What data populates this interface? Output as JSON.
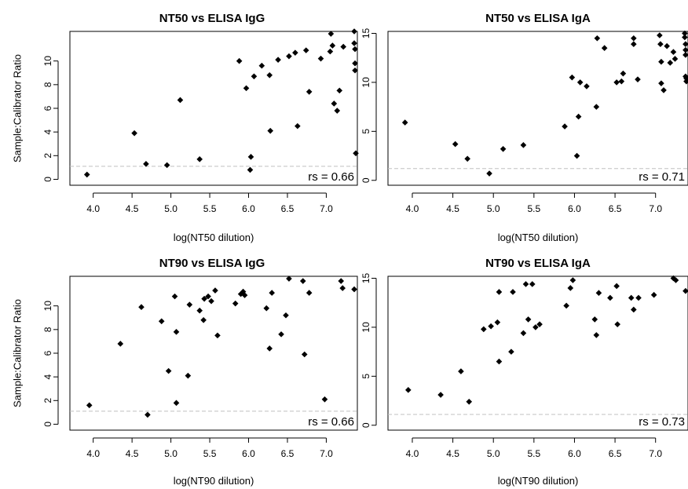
{
  "chart_data": [
    {
      "type": "scatter",
      "title": "NT50 vs ELISA IgG",
      "xlabel": "log(NT50 dilution)",
      "ylabel": "Sample:Calibrator Ratio",
      "xlim": [
        3.7,
        7.4
      ],
      "ylim": [
        -0.5,
        12.5
      ],
      "xticks": [
        "4.0",
        "4.5",
        "5.0",
        "5.5",
        "6.0",
        "6.5",
        "7.0"
      ],
      "xtick_values": [
        4.0,
        4.5,
        5.0,
        5.5,
        6.0,
        6.5,
        7.0
      ],
      "yticks": [
        "0",
        "2",
        "4",
        "6",
        "8",
        "10"
      ],
      "ytick_values": [
        0,
        2,
        4,
        6,
        8,
        10
      ],
      "ref_line": 1.1,
      "annotation": "rs = 0.66",
      "points": [
        [
          3.92,
          0.4
        ],
        [
          4.53,
          3.9
        ],
        [
          4.68,
          1.3
        ],
        [
          4.95,
          1.2
        ],
        [
          5.12,
          6.7
        ],
        [
          5.37,
          1.7
        ],
        [
          5.88,
          10.0
        ],
        [
          5.97,
          7.7
        ],
        [
          6.02,
          0.8
        ],
        [
          6.03,
          1.9
        ],
        [
          6.07,
          8.7
        ],
        [
          6.17,
          9.6
        ],
        [
          6.27,
          8.8
        ],
        [
          6.28,
          4.1
        ],
        [
          6.38,
          10.1
        ],
        [
          6.52,
          10.4
        ],
        [
          6.6,
          10.7
        ],
        [
          6.63,
          4.5
        ],
        [
          6.74,
          10.9
        ],
        [
          6.78,
          7.4
        ],
        [
          6.93,
          10.2
        ],
        [
          7.05,
          10.8
        ],
        [
          7.06,
          12.3
        ],
        [
          7.08,
          11.3
        ],
        [
          7.1,
          6.4
        ],
        [
          7.14,
          5.8
        ],
        [
          7.17,
          7.5
        ],
        [
          7.22,
          11.2
        ],
        [
          7.36,
          12.5
        ],
        [
          7.36,
          11.5
        ],
        [
          7.37,
          11.0
        ],
        [
          7.37,
          9.8
        ],
        [
          7.37,
          9.2
        ],
        [
          7.38,
          2.2
        ]
      ]
    },
    {
      "type": "scatter",
      "title": "NT50 vs ELISA IgA",
      "xlabel": "log(NT50 dilution)",
      "ylabel": "",
      "xlim": [
        3.7,
        7.4
      ],
      "ylim": [
        -0.5,
        15.2
      ],
      "xticks": [
        "4.0",
        "4.5",
        "5.0",
        "5.5",
        "6.0",
        "6.5",
        "7.0"
      ],
      "xtick_values": [
        4.0,
        4.5,
        5.0,
        5.5,
        6.0,
        6.5,
        7.0
      ],
      "yticks": [
        "0",
        "5",
        "10",
        "15"
      ],
      "ytick_values": [
        0,
        5,
        10,
        15
      ],
      "ref_line": 1.2,
      "annotation": "rs = 0.71",
      "points": [
        [
          3.91,
          5.9
        ],
        [
          4.53,
          3.7
        ],
        [
          4.68,
          2.2
        ],
        [
          4.95,
          0.7
        ],
        [
          5.12,
          3.2
        ],
        [
          5.37,
          3.6
        ],
        [
          5.88,
          5.5
        ],
        [
          5.97,
          10.5
        ],
        [
          6.03,
          2.5
        ],
        [
          6.05,
          6.5
        ],
        [
          6.07,
          10.0
        ],
        [
          6.15,
          9.6
        ],
        [
          6.27,
          7.5
        ],
        [
          6.28,
          14.5
        ],
        [
          6.37,
          13.5
        ],
        [
          6.52,
          10.0
        ],
        [
          6.58,
          10.1
        ],
        [
          6.6,
          10.9
        ],
        [
          6.73,
          14.5
        ],
        [
          6.73,
          13.9
        ],
        [
          6.78,
          10.3
        ],
        [
          7.05,
          14.8
        ],
        [
          7.06,
          13.9
        ],
        [
          7.07,
          12.1
        ],
        [
          7.07,
          9.9
        ],
        [
          7.1,
          9.2
        ],
        [
          7.14,
          13.7
        ],
        [
          7.18,
          12.0
        ],
        [
          7.22,
          13.1
        ],
        [
          7.24,
          12.4
        ],
        [
          7.36,
          15.0
        ],
        [
          7.36,
          14.6
        ],
        [
          7.37,
          13.9
        ],
        [
          7.37,
          13.3
        ],
        [
          7.37,
          12.8
        ],
        [
          7.37,
          10.6
        ],
        [
          7.38,
          10.1
        ],
        [
          7.38,
          10.4
        ]
      ]
    },
    {
      "type": "scatter",
      "title": "NT90 vs ELISA IgG",
      "xlabel": "log(NT90 dilution)",
      "ylabel": "Sample:Calibrator Ratio",
      "xlim": [
        3.7,
        7.4
      ],
      "ylim": [
        -0.5,
        12.5
      ],
      "xticks": [
        "4.0",
        "4.5",
        "5.0",
        "5.5",
        "6.0",
        "6.5",
        "7.0"
      ],
      "xtick_values": [
        4.0,
        4.5,
        5.0,
        5.5,
        6.0,
        6.5,
        7.0
      ],
      "yticks": [
        "0",
        "2",
        "4",
        "6",
        "8",
        "10"
      ],
      "ytick_values": [
        0,
        2,
        4,
        6,
        8,
        10
      ],
      "ref_line": 1.1,
      "annotation": "rs = 0.66",
      "points": [
        [
          3.95,
          1.6
        ],
        [
          4.35,
          6.8
        ],
        [
          4.62,
          9.9
        ],
        [
          4.7,
          0.8
        ],
        [
          4.88,
          8.7
        ],
        [
          4.97,
          4.5
        ],
        [
          5.05,
          10.8
        ],
        [
          5.07,
          7.8
        ],
        [
          5.07,
          1.8
        ],
        [
          5.22,
          4.1
        ],
        [
          5.24,
          10.1
        ],
        [
          5.37,
          9.6
        ],
        [
          5.42,
          8.8
        ],
        [
          5.43,
          10.6
        ],
        [
          5.48,
          10.8
        ],
        [
          5.52,
          10.4
        ],
        [
          5.57,
          11.3
        ],
        [
          5.6,
          7.5
        ],
        [
          5.83,
          10.2
        ],
        [
          5.9,
          11.0
        ],
        [
          5.93,
          11.2
        ],
        [
          5.95,
          10.9
        ],
        [
          6.23,
          9.8
        ],
        [
          6.27,
          6.4
        ],
        [
          6.3,
          11.1
        ],
        [
          6.42,
          7.6
        ],
        [
          6.48,
          9.2
        ],
        [
          6.52,
          12.3
        ],
        [
          6.7,
          12.1
        ],
        [
          6.72,
          5.9
        ],
        [
          6.78,
          11.1
        ],
        [
          6.98,
          2.1
        ],
        [
          7.19,
          12.1
        ],
        [
          7.21,
          11.5
        ],
        [
          7.36,
          11.4
        ]
      ]
    },
    {
      "type": "scatter",
      "title": "NT90 vs ELISA IgA",
      "xlabel": "log(NT90 dilution)",
      "ylabel": "",
      "xlim": [
        3.7,
        7.4
      ],
      "ylim": [
        -0.5,
        15.2
      ],
      "xticks": [
        "4.0",
        "4.5",
        "5.0",
        "5.5",
        "6.0",
        "6.5",
        "7.0"
      ],
      "xtick_values": [
        4.0,
        4.5,
        5.0,
        5.5,
        6.0,
        6.5,
        7.0
      ],
      "yticks": [
        "0",
        "5",
        "10",
        "15"
      ],
      "ytick_values": [
        0,
        5,
        10,
        15
      ],
      "ref_line": 1.1,
      "annotation": "rs = 0.73",
      "points": [
        [
          3.95,
          3.6
        ],
        [
          4.35,
          3.1
        ],
        [
          4.6,
          5.5
        ],
        [
          4.7,
          2.4
        ],
        [
          4.88,
          9.8
        ],
        [
          4.97,
          10.1
        ],
        [
          5.05,
          10.5
        ],
        [
          5.07,
          13.6
        ],
        [
          5.07,
          6.5
        ],
        [
          5.22,
          7.5
        ],
        [
          5.24,
          13.6
        ],
        [
          5.37,
          9.4
        ],
        [
          5.4,
          14.4
        ],
        [
          5.43,
          10.8
        ],
        [
          5.48,
          14.4
        ],
        [
          5.52,
          10.0
        ],
        [
          5.57,
          10.3
        ],
        [
          5.9,
          12.2
        ],
        [
          5.95,
          14.0
        ],
        [
          5.98,
          14.8
        ],
        [
          6.25,
          10.8
        ],
        [
          6.27,
          9.2
        ],
        [
          6.3,
          13.5
        ],
        [
          6.44,
          13.0
        ],
        [
          6.52,
          14.2
        ],
        [
          6.53,
          10.3
        ],
        [
          6.7,
          13.0
        ],
        [
          6.73,
          11.8
        ],
        [
          6.79,
          13.0
        ],
        [
          6.98,
          13.3
        ],
        [
          7.22,
          15.0
        ],
        [
          7.25,
          14.8
        ],
        [
          7.37,
          13.7
        ]
      ]
    }
  ]
}
